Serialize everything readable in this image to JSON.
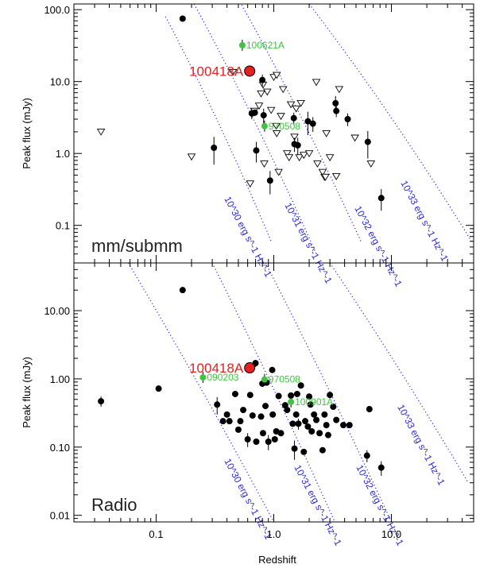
{
  "chart_data": [
    {
      "type": "scatter",
      "panel_label": "mm/submm",
      "xlabel": "",
      "ylabel": "Peak flux (mJy)",
      "xscale": "log",
      "yscale": "log",
      "xlim": [
        0.02,
        50
      ],
      "ylim": [
        0.03,
        120
      ],
      "yticks": [
        100.0,
        10.0,
        1.0,
        0.1
      ],
      "ytick_labels": [
        "100.0",
        "10.0",
        "1.0",
        "0.1"
      ],
      "detections": [
        {
          "x": 0.168,
          "y": 75,
          "err": 0
        },
        {
          "x": 0.31,
          "y": 1.2,
          "err": 0.5
        },
        {
          "x": 0.65,
          "y": 3.6,
          "err": 0.6
        },
        {
          "x": 0.69,
          "y": 3.7,
          "err": 0.4
        },
        {
          "x": 0.71,
          "y": 1.1,
          "err": 0.35
        },
        {
          "x": 0.8,
          "y": 10.5,
          "err": 2
        },
        {
          "x": 0.82,
          "y": 3.4,
          "err": 0.8
        },
        {
          "x": 0.93,
          "y": 0.42,
          "err": 0.15
        },
        {
          "x": 1.48,
          "y": 3.1,
          "err": 0.6
        },
        {
          "x": 1.5,
          "y": 1.35,
          "err": 0.3
        },
        {
          "x": 1.6,
          "y": 1.3,
          "err": 0.35
        },
        {
          "x": 1.95,
          "y": 2.8,
          "err": 1.0
        },
        {
          "x": 2.15,
          "y": 2.6,
          "err": 0.6
        },
        {
          "x": 3.35,
          "y": 5.0,
          "err": 1.3
        },
        {
          "x": 3.4,
          "y": 3.9,
          "err": 0.7
        },
        {
          "x": 4.25,
          "y": 3.0,
          "err": 0.6
        },
        {
          "x": 6.3,
          "y": 1.45,
          "err": 0.6
        },
        {
          "x": 8.2,
          "y": 0.24,
          "err": 0.08
        }
      ],
      "upper_limits": [
        {
          "x": 0.034,
          "y": 2.0
        },
        {
          "x": 0.2,
          "y": 0.9
        },
        {
          "x": 0.45,
          "y": 13.5
        },
        {
          "x": 0.63,
          "y": 0.38
        },
        {
          "x": 0.68,
          "y": 3.9
        },
        {
          "x": 0.75,
          "y": 4.6
        },
        {
          "x": 0.78,
          "y": 6.8
        },
        {
          "x": 0.81,
          "y": 9.0
        },
        {
          "x": 0.83,
          "y": 0.72
        },
        {
          "x": 0.88,
          "y": 7.2
        },
        {
          "x": 0.95,
          "y": 4.0
        },
        {
          "x": 1.0,
          "y": 11.5
        },
        {
          "x": 1.05,
          "y": 2.4
        },
        {
          "x": 1.06,
          "y": 1.9
        },
        {
          "x": 1.06,
          "y": 12.3
        },
        {
          "x": 1.1,
          "y": 0.55
        },
        {
          "x": 1.15,
          "y": 3.3
        },
        {
          "x": 1.2,
          "y": 7.8
        },
        {
          "x": 1.3,
          "y": 1.0
        },
        {
          "x": 1.35,
          "y": 0.88
        },
        {
          "x": 1.4,
          "y": 4.8
        },
        {
          "x": 1.5,
          "y": 1.7
        },
        {
          "x": 1.55,
          "y": 4.2
        },
        {
          "x": 1.65,
          "y": 0.88
        },
        {
          "x": 1.7,
          "y": 5.0
        },
        {
          "x": 1.8,
          "y": 0.95
        },
        {
          "x": 2.0,
          "y": 1.0
        },
        {
          "x": 2.3,
          "y": 9.8
        },
        {
          "x": 2.35,
          "y": 0.72
        },
        {
          "x": 2.6,
          "y": 0.55
        },
        {
          "x": 2.7,
          "y": 0.47
        },
        {
          "x": 2.75,
          "y": 0.47
        },
        {
          "x": 2.8,
          "y": 1.9
        },
        {
          "x": 3.0,
          "y": 0.88
        },
        {
          "x": 3.4,
          "y": 0.48
        },
        {
          "x": 3.6,
          "y": 7.8
        },
        {
          "x": 4.9,
          "y": 1.65
        },
        {
          "x": 6.7,
          "y": 0.72
        }
      ],
      "highlight_green": [
        {
          "label": "100621A",
          "x": 0.54,
          "y": 32
        },
        {
          "label": "970508",
          "x": 0.835,
          "y": 2.4
        }
      ],
      "highlight_red": [
        {
          "label": "100418A",
          "x": 0.624,
          "y": 14
        }
      ],
      "lum_labels": [
        "10^30 erg s^-1 Hz^-1",
        "10^31 erg s^-1 Hz^-1",
        "10^32 erg s^-1 Hz^-1",
        "10^33 erg s^-1 Hz^-1"
      ]
    },
    {
      "type": "scatter",
      "panel_label": "Radio",
      "xlabel": "Redshift",
      "ylabel": "Peak flux (mJy)",
      "xscale": "log",
      "yscale": "log",
      "xlim": [
        0.02,
        50
      ],
      "ylim": [
        0.008,
        50
      ],
      "xticks": [
        0.1,
        1.0,
        10.0
      ],
      "xtick_labels": [
        "0.1",
        "1.0",
        "10.0"
      ],
      "yticks": [
        10.0,
        1.0,
        0.1,
        0.01
      ],
      "ytick_labels": [
        "10.00",
        "1.00",
        "0.10",
        "0.01"
      ],
      "detections": [
        {
          "x": 0.034,
          "y": 0.47,
          "err": 0.08
        },
        {
          "x": 0.105,
          "y": 0.72,
          "err": 0
        },
        {
          "x": 0.168,
          "y": 20,
          "err": 0
        },
        {
          "x": 0.33,
          "y": 0.42,
          "err": 0.12
        },
        {
          "x": 0.37,
          "y": 0.24,
          "err": 0
        },
        {
          "x": 0.4,
          "y": 0.3,
          "err": 0
        },
        {
          "x": 0.42,
          "y": 0.24,
          "err": 0
        },
        {
          "x": 0.47,
          "y": 0.6,
          "err": 0
        },
        {
          "x": 0.5,
          "y": 0.18,
          "err": 0
        },
        {
          "x": 0.52,
          "y": 0.24,
          "err": 0
        },
        {
          "x": 0.55,
          "y": 0.35,
          "err": 0
        },
        {
          "x": 0.6,
          "y": 0.13,
          "err": 0.03
        },
        {
          "x": 0.63,
          "y": 0.58,
          "err": 0
        },
        {
          "x": 0.66,
          "y": 0.29,
          "err": 0
        },
        {
          "x": 0.7,
          "y": 1.7,
          "err": 0.2
        },
        {
          "x": 0.71,
          "y": 0.12,
          "err": 0
        },
        {
          "x": 0.78,
          "y": 0.28,
          "err": 0
        },
        {
          "x": 0.8,
          "y": 0.85,
          "err": 0
        },
        {
          "x": 0.81,
          "y": 0.16,
          "err": 0
        },
        {
          "x": 0.85,
          "y": 0.4,
          "err": 0
        },
        {
          "x": 0.87,
          "y": 0.88,
          "err": 0
        },
        {
          "x": 0.9,
          "y": 0.12,
          "err": 0.03
        },
        {
          "x": 0.97,
          "y": 1.35,
          "err": 0
        },
        {
          "x": 0.98,
          "y": 0.3,
          "err": 0
        },
        {
          "x": 1.02,
          "y": 0.13,
          "err": 0
        },
        {
          "x": 1.05,
          "y": 0.17,
          "err": 0
        },
        {
          "x": 1.1,
          "y": 0.56,
          "err": 0
        },
        {
          "x": 1.15,
          "y": 0.16,
          "err": 0
        },
        {
          "x": 1.25,
          "y": 0.41,
          "err": 0
        },
        {
          "x": 1.3,
          "y": 0.35,
          "err": 0
        },
        {
          "x": 1.4,
          "y": 0.57,
          "err": 0
        },
        {
          "x": 1.45,
          "y": 0.22,
          "err": 0
        },
        {
          "x": 1.5,
          "y": 0.095,
          "err": 0.03
        },
        {
          "x": 1.55,
          "y": 0.3,
          "err": 0
        },
        {
          "x": 1.58,
          "y": 0.6,
          "err": 0
        },
        {
          "x": 1.62,
          "y": 0.22,
          "err": 0.04
        },
        {
          "x": 1.7,
          "y": 0.8,
          "err": 0
        },
        {
          "x": 1.8,
          "y": 0.085,
          "err": 0
        },
        {
          "x": 1.85,
          "y": 0.24,
          "err": 0
        },
        {
          "x": 1.95,
          "y": 0.2,
          "err": 0
        },
        {
          "x": 2.0,
          "y": 0.55,
          "err": 0
        },
        {
          "x": 2.05,
          "y": 0.42,
          "err": 0
        },
        {
          "x": 2.1,
          "y": 0.17,
          "err": 0
        },
        {
          "x": 2.2,
          "y": 0.3,
          "err": 0
        },
        {
          "x": 2.3,
          "y": 0.25,
          "err": 0
        },
        {
          "x": 2.45,
          "y": 0.16,
          "err": 0
        },
        {
          "x": 2.6,
          "y": 0.09,
          "err": 0
        },
        {
          "x": 2.7,
          "y": 0.3,
          "err": 0
        },
        {
          "x": 2.8,
          "y": 0.21,
          "err": 0
        },
        {
          "x": 2.9,
          "y": 0.15,
          "err": 0
        },
        {
          "x": 3.0,
          "y": 0.58,
          "err": 0
        },
        {
          "x": 3.2,
          "y": 0.39,
          "err": 0
        },
        {
          "x": 3.4,
          "y": 0.25,
          "err": 0
        },
        {
          "x": 3.9,
          "y": 0.21,
          "err": 0
        },
        {
          "x": 4.4,
          "y": 0.21,
          "err": 0
        },
        {
          "x": 6.2,
          "y": 0.075,
          "err": 0.015
        },
        {
          "x": 6.5,
          "y": 0.36,
          "err": 0
        },
        {
          "x": 8.2,
          "y": 0.05,
          "err": 0.012
        }
      ],
      "upper_limits": [],
      "highlight_green": [
        {
          "label": "090203",
          "x": 0.25,
          "y": 1.05
        },
        {
          "label": "970508",
          "x": 0.835,
          "y": 0.98
        },
        {
          "label": "100901A",
          "x": 1.4,
          "y": 0.46
        }
      ],
      "highlight_red": [
        {
          "label": "100418A",
          "x": 0.624,
          "y": 1.45
        }
      ],
      "lum_labels": [
        "10^30 erg s^-1 Hz^-1",
        "10^31 erg s^-1 Hz^-1",
        "10^32 erg s^-1 Hz^-1",
        "10^33 erg s^-1 Hz^-1"
      ]
    }
  ]
}
